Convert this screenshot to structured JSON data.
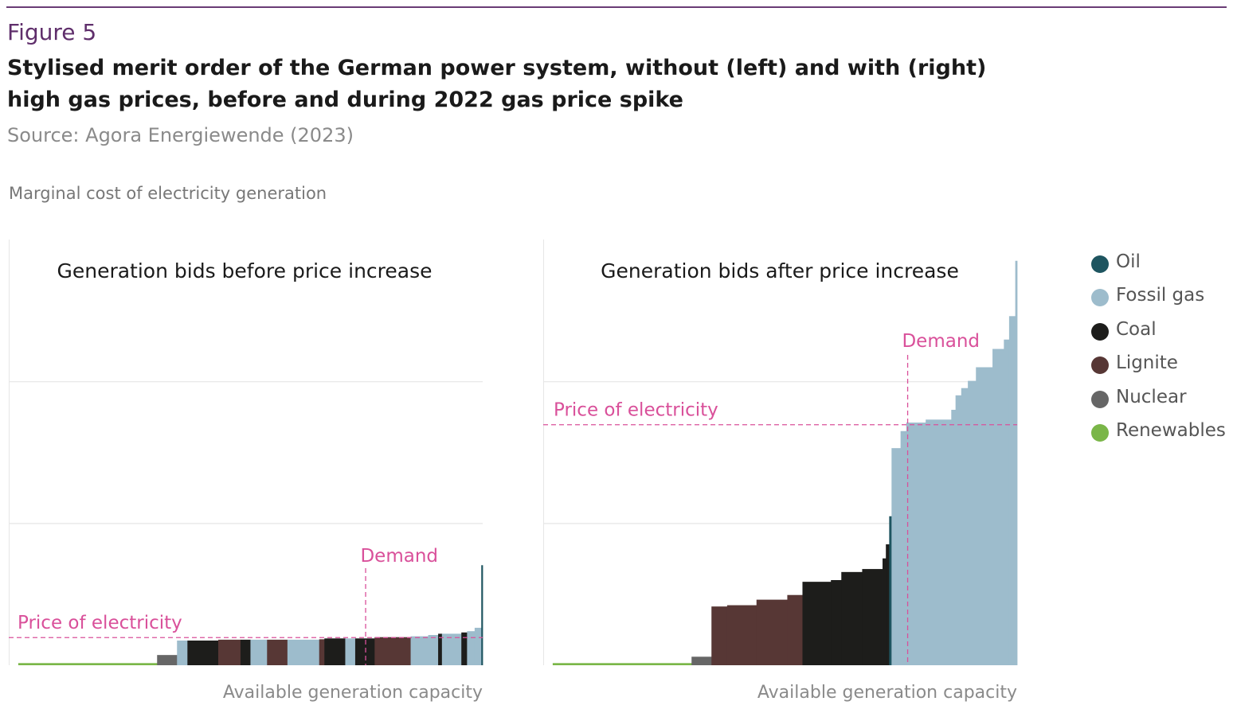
{
  "figure": {
    "label": "Figure 5",
    "title_line1": "Stylised merit order of the German power system, without (left) and with (right)",
    "title_line2": "high gas prices, before and during 2022 gas price spike",
    "source": "Source: Agora Energiewende (2023)",
    "yaxis_label": "Marginal cost of electricity generation"
  },
  "colors": {
    "Oil": "#1e5560",
    "Fossil gas": "#9dbccc",
    "Coal": "#1d1d1b",
    "Lignite": "#573735",
    "Nuclear": "#666666",
    "Renewables": "#7ab648",
    "annotation": "#d9509a",
    "grid": "#e6e6e6"
  },
  "legend": [
    {
      "label": "Oil",
      "type": "Oil"
    },
    {
      "label": "Fossil gas",
      "type": "Fossil gas"
    },
    {
      "label": "Coal",
      "type": "Coal"
    },
    {
      "label": "Lignite",
      "type": "Lignite"
    },
    {
      "label": "Nuclear",
      "type": "Nuclear"
    },
    {
      "label": "Renewables",
      "type": "Renewables"
    }
  ],
  "chart_data": [
    {
      "type": "bar",
      "title": "Generation bids before price increase",
      "xlabel": "Available generation capacity",
      "ylabel": "Marginal cost of electricity generation",
      "xlim": [
        0,
        100
      ],
      "ylim": [
        0,
        100
      ],
      "grid": "horizontal",
      "demand_label": "Demand",
      "price_label": "Price of electricity",
      "demand_x": 75.3,
      "price_y": 6.5,
      "bids": [
        {
          "type": "Renewables",
          "x0": 2.0,
          "x1": 31.3,
          "y": 0.5
        },
        {
          "type": "Nuclear",
          "x0": 31.3,
          "x1": 35.5,
          "y": 2.4
        },
        {
          "type": "Fossil gas",
          "x0": 35.5,
          "x1": 37.7,
          "y": 5.8
        },
        {
          "type": "Coal",
          "x0": 37.7,
          "x1": 44.2,
          "y": 5.8
        },
        {
          "type": "Lignite",
          "x0": 44.2,
          "x1": 48.9,
          "y": 6.0
        },
        {
          "type": "Coal",
          "x0": 48.9,
          "x1": 51.0,
          "y": 6.0
        },
        {
          "type": "Fossil gas",
          "x0": 51.0,
          "x1": 54.5,
          "y": 6.0
        },
        {
          "type": "Lignite",
          "x0": 54.5,
          "x1": 58.8,
          "y": 6.0
        },
        {
          "type": "Fossil gas",
          "x0": 58.8,
          "x1": 65.5,
          "y": 6.0
        },
        {
          "type": "Lignite",
          "x0": 65.5,
          "x1": 66.6,
          "y": 6.1
        },
        {
          "type": "Coal",
          "x0": 66.6,
          "x1": 71.0,
          "y": 6.3
        },
        {
          "type": "Fossil gas",
          "x0": 71.0,
          "x1": 73.1,
          "y": 6.3
        },
        {
          "type": "Coal",
          "x0": 73.1,
          "x1": 77.2,
          "y": 6.3
        },
        {
          "type": "Lignite",
          "x0": 77.2,
          "x1": 84.8,
          "y": 6.6
        },
        {
          "type": "Fossil gas",
          "x0": 84.8,
          "x1": 88.5,
          "y": 6.8
        },
        {
          "type": "Fossil gas",
          "x0": 88.5,
          "x1": 90.6,
          "y": 7.1
        },
        {
          "type": "Coal",
          "x0": 90.6,
          "x1": 91.4,
          "y": 7.4
        },
        {
          "type": "Fossil gas",
          "x0": 91.4,
          "x1": 95.5,
          "y": 7.4
        },
        {
          "type": "Coal",
          "x0": 95.5,
          "x1": 96.7,
          "y": 7.7
        },
        {
          "type": "Fossil gas",
          "x0": 96.7,
          "x1": 98.3,
          "y": 8.0
        },
        {
          "type": "Fossil gas",
          "x0": 98.3,
          "x1": 99.7,
          "y": 8.8
        },
        {
          "type": "Oil",
          "x0": 99.7,
          "x1": 100.0,
          "y": 23.5
        }
      ]
    },
    {
      "type": "bar",
      "title": "Generation bids after price increase",
      "xlabel": "Available generation capacity",
      "ylabel": "Marginal cost of electricity generation",
      "xlim": [
        0,
        100
      ],
      "ylim": [
        0,
        100
      ],
      "grid": "horizontal",
      "demand_label": "Demand",
      "price_label": "Price of electricity",
      "demand_x": 76.9,
      "price_y": 56.5,
      "bids": [
        {
          "type": "Renewables",
          "x0": 2.0,
          "x1": 31.3,
          "y": 0.5
        },
        {
          "type": "Nuclear",
          "x0": 31.3,
          "x1": 35.5,
          "y": 2.0
        },
        {
          "type": "Lignite",
          "x0": 35.5,
          "x1": 38.8,
          "y": 13.8
        },
        {
          "type": "Lignite",
          "x0": 38.8,
          "x1": 45.0,
          "y": 14.1
        },
        {
          "type": "Lignite",
          "x0": 45.0,
          "x1": 51.5,
          "y": 15.4
        },
        {
          "type": "Lignite",
          "x0": 51.5,
          "x1": 54.7,
          "y": 16.5
        },
        {
          "type": "Coal",
          "x0": 54.7,
          "x1": 60.7,
          "y": 19.6
        },
        {
          "type": "Coal",
          "x0": 60.7,
          "x1": 62.9,
          "y": 20.0
        },
        {
          "type": "Coal",
          "x0": 62.9,
          "x1": 67.3,
          "y": 21.9
        },
        {
          "type": "Coal",
          "x0": 67.3,
          "x1": 71.6,
          "y": 22.6
        },
        {
          "type": "Coal",
          "x0": 71.6,
          "x1": 72.3,
          "y": 25.1
        },
        {
          "type": "Coal",
          "x0": 72.3,
          "x1": 73.0,
          "y": 28.4
        },
        {
          "type": "Oil",
          "x0": 73.0,
          "x1": 73.5,
          "y": 35.0
        },
        {
          "type": "Fossil gas",
          "x0": 73.5,
          "x1": 75.4,
          "y": 51.0
        },
        {
          "type": "Fossil gas",
          "x0": 75.4,
          "x1": 76.6,
          "y": 55.0
        },
        {
          "type": "Fossil gas",
          "x0": 76.6,
          "x1": 80.7,
          "y": 57.0
        },
        {
          "type": "Fossil gas",
          "x0": 80.7,
          "x1": 86.1,
          "y": 57.7
        },
        {
          "type": "Fossil gas",
          "x0": 86.1,
          "x1": 87.0,
          "y": 60.0
        },
        {
          "type": "Fossil gas",
          "x0": 87.0,
          "x1": 88.2,
          "y": 63.4
        },
        {
          "type": "Fossil gas",
          "x0": 88.2,
          "x1": 89.6,
          "y": 65.1
        },
        {
          "type": "Fossil gas",
          "x0": 89.6,
          "x1": 91.3,
          "y": 66.8
        },
        {
          "type": "Fossil gas",
          "x0": 91.3,
          "x1": 94.8,
          "y": 70.0
        },
        {
          "type": "Fossil gas",
          "x0": 94.8,
          "x1": 97.2,
          "y": 74.3
        },
        {
          "type": "Fossil gas",
          "x0": 97.2,
          "x1": 98.3,
          "y": 76.5
        },
        {
          "type": "Fossil gas",
          "x0": 98.3,
          "x1": 99.6,
          "y": 82.0
        },
        {
          "type": "Fossil gas",
          "x0": 99.6,
          "x1": 100.0,
          "y": 95.0
        }
      ]
    }
  ]
}
